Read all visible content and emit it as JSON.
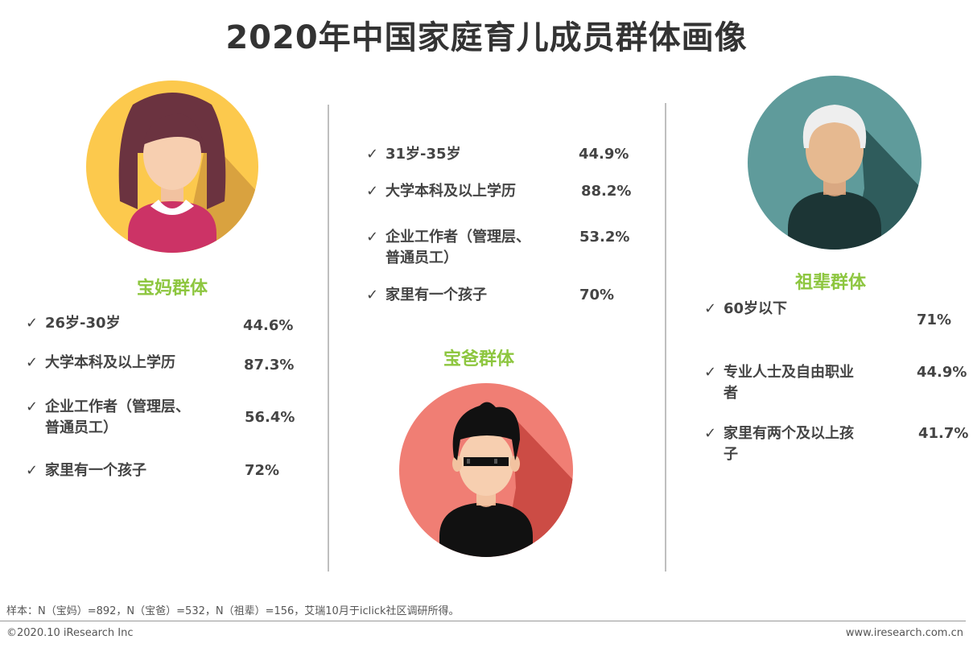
{
  "title": "2020年中国家庭育儿成员群体画像",
  "colors": {
    "accent_green": "#8dc63f",
    "mom_bg": "#fcc94d",
    "dad_bg": "#f07e74",
    "grand_bg": "#5f9b9b"
  },
  "mom": {
    "name": "宝妈群体",
    "icon": "woman-avatar-icon",
    "stats": [
      {
        "label": "26岁-30岁",
        "value": "44.6%"
      },
      {
        "label": "大学本科及以上学历",
        "value": "87.3%"
      },
      {
        "label_line1": "企业工作者（管理层、",
        "label_line2": "普通员工）",
        "value": "56.4%"
      },
      {
        "label": "家里有一个孩子",
        "value": "72%"
      }
    ]
  },
  "dad": {
    "name": "宝爸群体",
    "icon": "man-sunglasses-avatar-icon",
    "stats": [
      {
        "label": "31岁-35岁",
        "value": "44.9%"
      },
      {
        "label": "大学本科及以上学历",
        "value": "88.2%"
      },
      {
        "label_line1": "企业工作者（管理层、",
        "label_line2": "普通员工）",
        "value": "53.2%"
      },
      {
        "label": "家里有一个孩子",
        "value": "70%"
      }
    ]
  },
  "grand": {
    "name": "祖辈群体",
    "icon": "grandparent-avatar-icon",
    "stats": [
      {
        "label": "60岁以下",
        "value": "71%"
      },
      {
        "label_line1": "专业人士及自由职业",
        "label_line2": "者",
        "value": "44.9%"
      },
      {
        "label_line1": "家里有两个及以上孩",
        "label_line2": "子",
        "value": "41.7%"
      }
    ]
  },
  "check_mark": "✓",
  "footnote": "样本：N（宝妈）=892，N（宝爸）=532，N（祖辈）=156，艾瑞10月于iclick社区调研所得。",
  "copyright": "©2020.10 iResearch Inc",
  "website": "www.iresearch.com.cn"
}
